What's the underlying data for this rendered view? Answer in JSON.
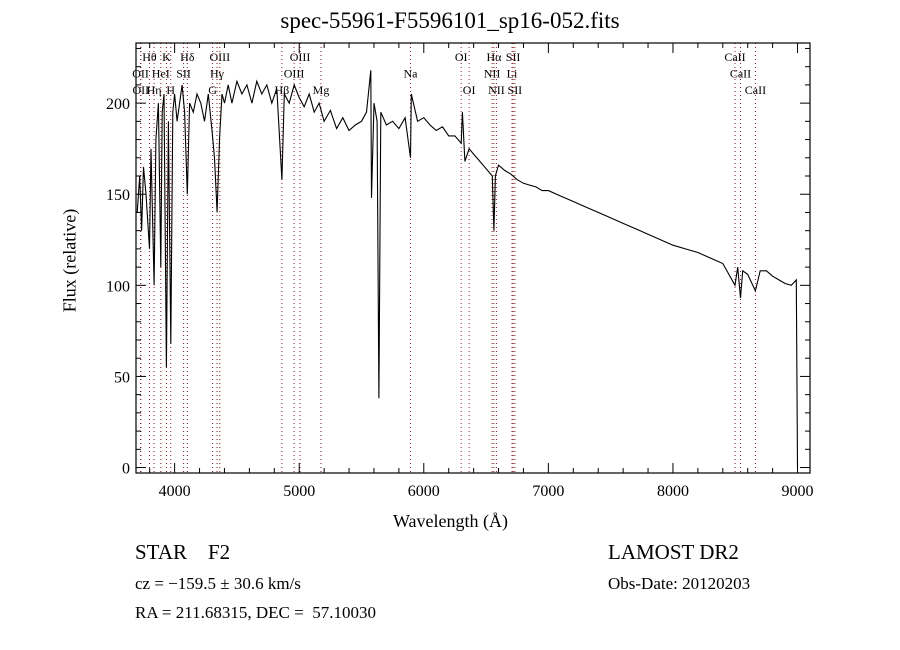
{
  "chart_data": {
    "type": "line",
    "title": "spec-55961-F5596101_sp16-052.fits",
    "xlabel": "Wavelength (Å)",
    "ylabel": "Flux (relative)",
    "xlim": [
      3690,
      9100
    ],
    "ylim": [
      -3,
      233
    ],
    "xticks": [
      4000,
      5000,
      6000,
      7000,
      8000,
      9000
    ],
    "yticks": [
      0,
      50,
      100,
      150,
      200
    ],
    "grid": false,
    "series": [
      {
        "name": "spectrum",
        "x": [
          3700,
          3720,
          3735,
          3750,
          3770,
          3798,
          3810,
          3835,
          3850,
          3870,
          3889,
          3900,
          3915,
          3934,
          3950,
          3969,
          3985,
          4000,
          4020,
          4040,
          4060,
          4080,
          4102,
          4120,
          4150,
          4180,
          4210,
          4240,
          4270,
          4300,
          4320,
          4341,
          4360,
          4380,
          4400,
          4430,
          4460,
          4500,
          4540,
          4580,
          4620,
          4660,
          4700,
          4740,
          4780,
          4820,
          4861,
          4880,
          4920,
          4960,
          5000,
          5040,
          5080,
          5120,
          5160,
          5200,
          5250,
          5300,
          5350,
          5400,
          5450,
          5500,
          5540,
          5575,
          5580,
          5600,
          5625,
          5640,
          5655,
          5700,
          5750,
          5800,
          5850,
          5893,
          5900,
          5950,
          6000,
          6050,
          6100,
          6150,
          6200,
          6250,
          6300,
          6310,
          6330,
          6364,
          6400,
          6450,
          6500,
          6550,
          6563,
          6575,
          6600,
          6650,
          6700,
          6750,
          6800,
          6850,
          6900,
          6950,
          7000,
          7100,
          7200,
          7300,
          7400,
          7500,
          7600,
          7700,
          7800,
          7900,
          8000,
          8100,
          8200,
          8300,
          8400,
          8498,
          8520,
          8542,
          8560,
          8600,
          8662,
          8700,
          8750,
          8800,
          8850,
          8900,
          8950,
          8990,
          9000
        ],
        "y": [
          140,
          160,
          130,
          165,
          150,
          120,
          175,
          100,
          180,
          200,
          110,
          195,
          205,
          55,
          190,
          68,
          195,
          205,
          190,
          200,
          210,
          195,
          150,
          200,
          195,
          205,
          200,
          190,
          205,
          185,
          170,
          140,
          180,
          205,
          200,
          210,
          200,
          212,
          205,
          210,
          200,
          212,
          205,
          210,
          200,
          208,
          158,
          205,
          200,
          210,
          203,
          198,
          205,
          195,
          200,
          190,
          196,
          186,
          192,
          185,
          188,
          190,
          195,
          218,
          148,
          200,
          190,
          38,
          195,
          188,
          190,
          186,
          192,
          170,
          205,
          190,
          192,
          188,
          185,
          187,
          182,
          182,
          178,
          195,
          168,
          175,
          172,
          168,
          164,
          160,
          130,
          160,
          166,
          163,
          161,
          158,
          156,
          155,
          154,
          152,
          152,
          149,
          146,
          143,
          140,
          137,
          134,
          131,
          128,
          125,
          122,
          120,
          118,
          115,
          112,
          100,
          110,
          93,
          108,
          106,
          97,
          108,
          108,
          105,
          103,
          101,
          100,
          103,
          0
        ]
      }
    ],
    "line_labels": [
      {
        "name": "Hθ",
        "wave": 3798,
        "row": 1
      },
      {
        "name": "K",
        "wave": 3934,
        "row": 1
      },
      {
        "name": "Hδ",
        "wave": 4102,
        "row": 1
      },
      {
        "name": "OIII",
        "wave": 4363,
        "row": 1
      },
      {
        "name": "OIII",
        "wave": 5007,
        "row": 1
      },
      {
        "name": "OI",
        "wave": 6300,
        "row": 1
      },
      {
        "name": "Hα",
        "wave": 6563,
        "row": 1
      },
      {
        "name": "SII",
        "wave": 6717,
        "row": 1
      },
      {
        "name": "CaII",
        "wave": 8498,
        "row": 1
      },
      {
        "name": "OII",
        "wave": 3727,
        "row": 2
      },
      {
        "name": "HeI",
        "wave": 3889,
        "row": 2
      },
      {
        "name": "SII",
        "wave": 4072,
        "row": 2
      },
      {
        "name": "Hγ",
        "wave": 4340,
        "row": 2
      },
      {
        "name": "OIII",
        "wave": 4959,
        "row": 2
      },
      {
        "name": "Na",
        "wave": 5893,
        "row": 2
      },
      {
        "name": "NII",
        "wave": 6548,
        "row": 2
      },
      {
        "name": "Li",
        "wave": 6708,
        "row": 2
      },
      {
        "name": "CaII",
        "wave": 8542,
        "row": 2
      },
      {
        "name": "OII",
        "wave": 3729,
        "row": 3
      },
      {
        "name": "Hη",
        "wave": 3835,
        "row": 3
      },
      {
        "name": "H",
        "wave": 3969,
        "row": 3
      },
      {
        "name": "G",
        "wave": 4305,
        "row": 3
      },
      {
        "name": "Hβ",
        "wave": 4861,
        "row": 3
      },
      {
        "name": "Mg",
        "wave": 5175,
        "row": 3
      },
      {
        "name": "OI",
        "wave": 6364,
        "row": 3
      },
      {
        "name": "NII",
        "wave": 6583,
        "row": 3
      },
      {
        "name": "SII",
        "wave": 6731,
        "row": 3
      },
      {
        "name": "CaII",
        "wave": 8662,
        "row": 3
      }
    ],
    "colors": {
      "spectrum": "#000000",
      "line_markers": "#8b1a1a"
    }
  },
  "info": {
    "object_type": "STAR    F2",
    "survey": "LAMOST DR2",
    "redshift": "cz = −159.5 ± 30.6 km/s",
    "obs_date": "Obs-Date: 20120203",
    "coords": "RA = 211.68315, DEC =  57.10030"
  }
}
